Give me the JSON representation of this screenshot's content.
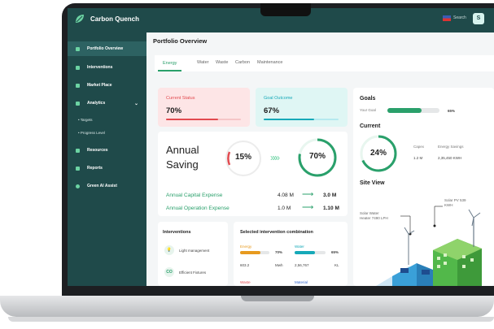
{
  "app": {
    "title": "Carbon Quench",
    "search_label": "Search",
    "avatar_initial": "S"
  },
  "sidebar": {
    "items": [
      {
        "label": "Portfolio Overview"
      },
      {
        "label": "Interventions"
      },
      {
        "label": "Market Place"
      },
      {
        "label": "Analytics"
      },
      {
        "label": "Resources"
      },
      {
        "label": "Reports"
      },
      {
        "label": "Green AI Assist"
      }
    ],
    "analytics_sub": [
      "Targets",
      "Progress Level"
    ]
  },
  "main": {
    "title": "Portfolio Overview",
    "tabs": [
      "Energy",
      "Water",
      "Waste",
      "Carbon",
      "Maintenance"
    ],
    "current_status": {
      "label": "Current Status",
      "value": "70%",
      "progress": 0.7,
      "color": "#e24a4f"
    },
    "goal_outcome": {
      "label": "Goal Outcome",
      "value": "67%",
      "progress": 0.67,
      "color": "#16a9b8"
    },
    "annual_saving": {
      "title_line1": "Annual",
      "title_line2": "Saving",
      "from_pct": "15%",
      "to_pct": "70%",
      "capital_label": "Annual Capital Expense",
      "capital_from": "4.08 M",
      "capital_to": "3.0 M",
      "operation_label": "Annual Operation Expense",
      "operation_from": "1.0 M",
      "operation_to": "1.10 M"
    },
    "interventions": {
      "title": "Interventions",
      "items": [
        "Light management",
        "Efficient Fixtures"
      ]
    },
    "combination": {
      "title": "Selected intervention combination",
      "energy": {
        "label": "Energy",
        "pct": "70%",
        "value": "603.2",
        "unit": "Mwh",
        "progress": 0.7
      },
      "water": {
        "label": "Water",
        "pct": "65%",
        "value": "2,56,767",
        "unit": "KL",
        "progress": 0.65
      },
      "waste_label": "Waste",
      "material_label": "Material"
    }
  },
  "right": {
    "goals_title": "Goals",
    "your_goal_label": "Your Goal",
    "your_goal_pct": "65%",
    "your_goal_progress": 0.65,
    "current_title": "Current",
    "current_pct": "24%",
    "capex_label": "Capex",
    "capex_value": "1.2 M",
    "energy_savings_label": "Energy Savings",
    "energy_savings_value": "2,35,450 KWH",
    "site_view_title": "Site View",
    "solar_water_label": "Solar Water\nHeater 7490 LPH",
    "solar_pv_label": "Solar PV 539\nKWH"
  },
  "colors": {
    "sidebar": "#1f4a4a",
    "accent": "#2aa06b",
    "red": "#e24a4f",
    "teal": "#16a9b8"
  }
}
